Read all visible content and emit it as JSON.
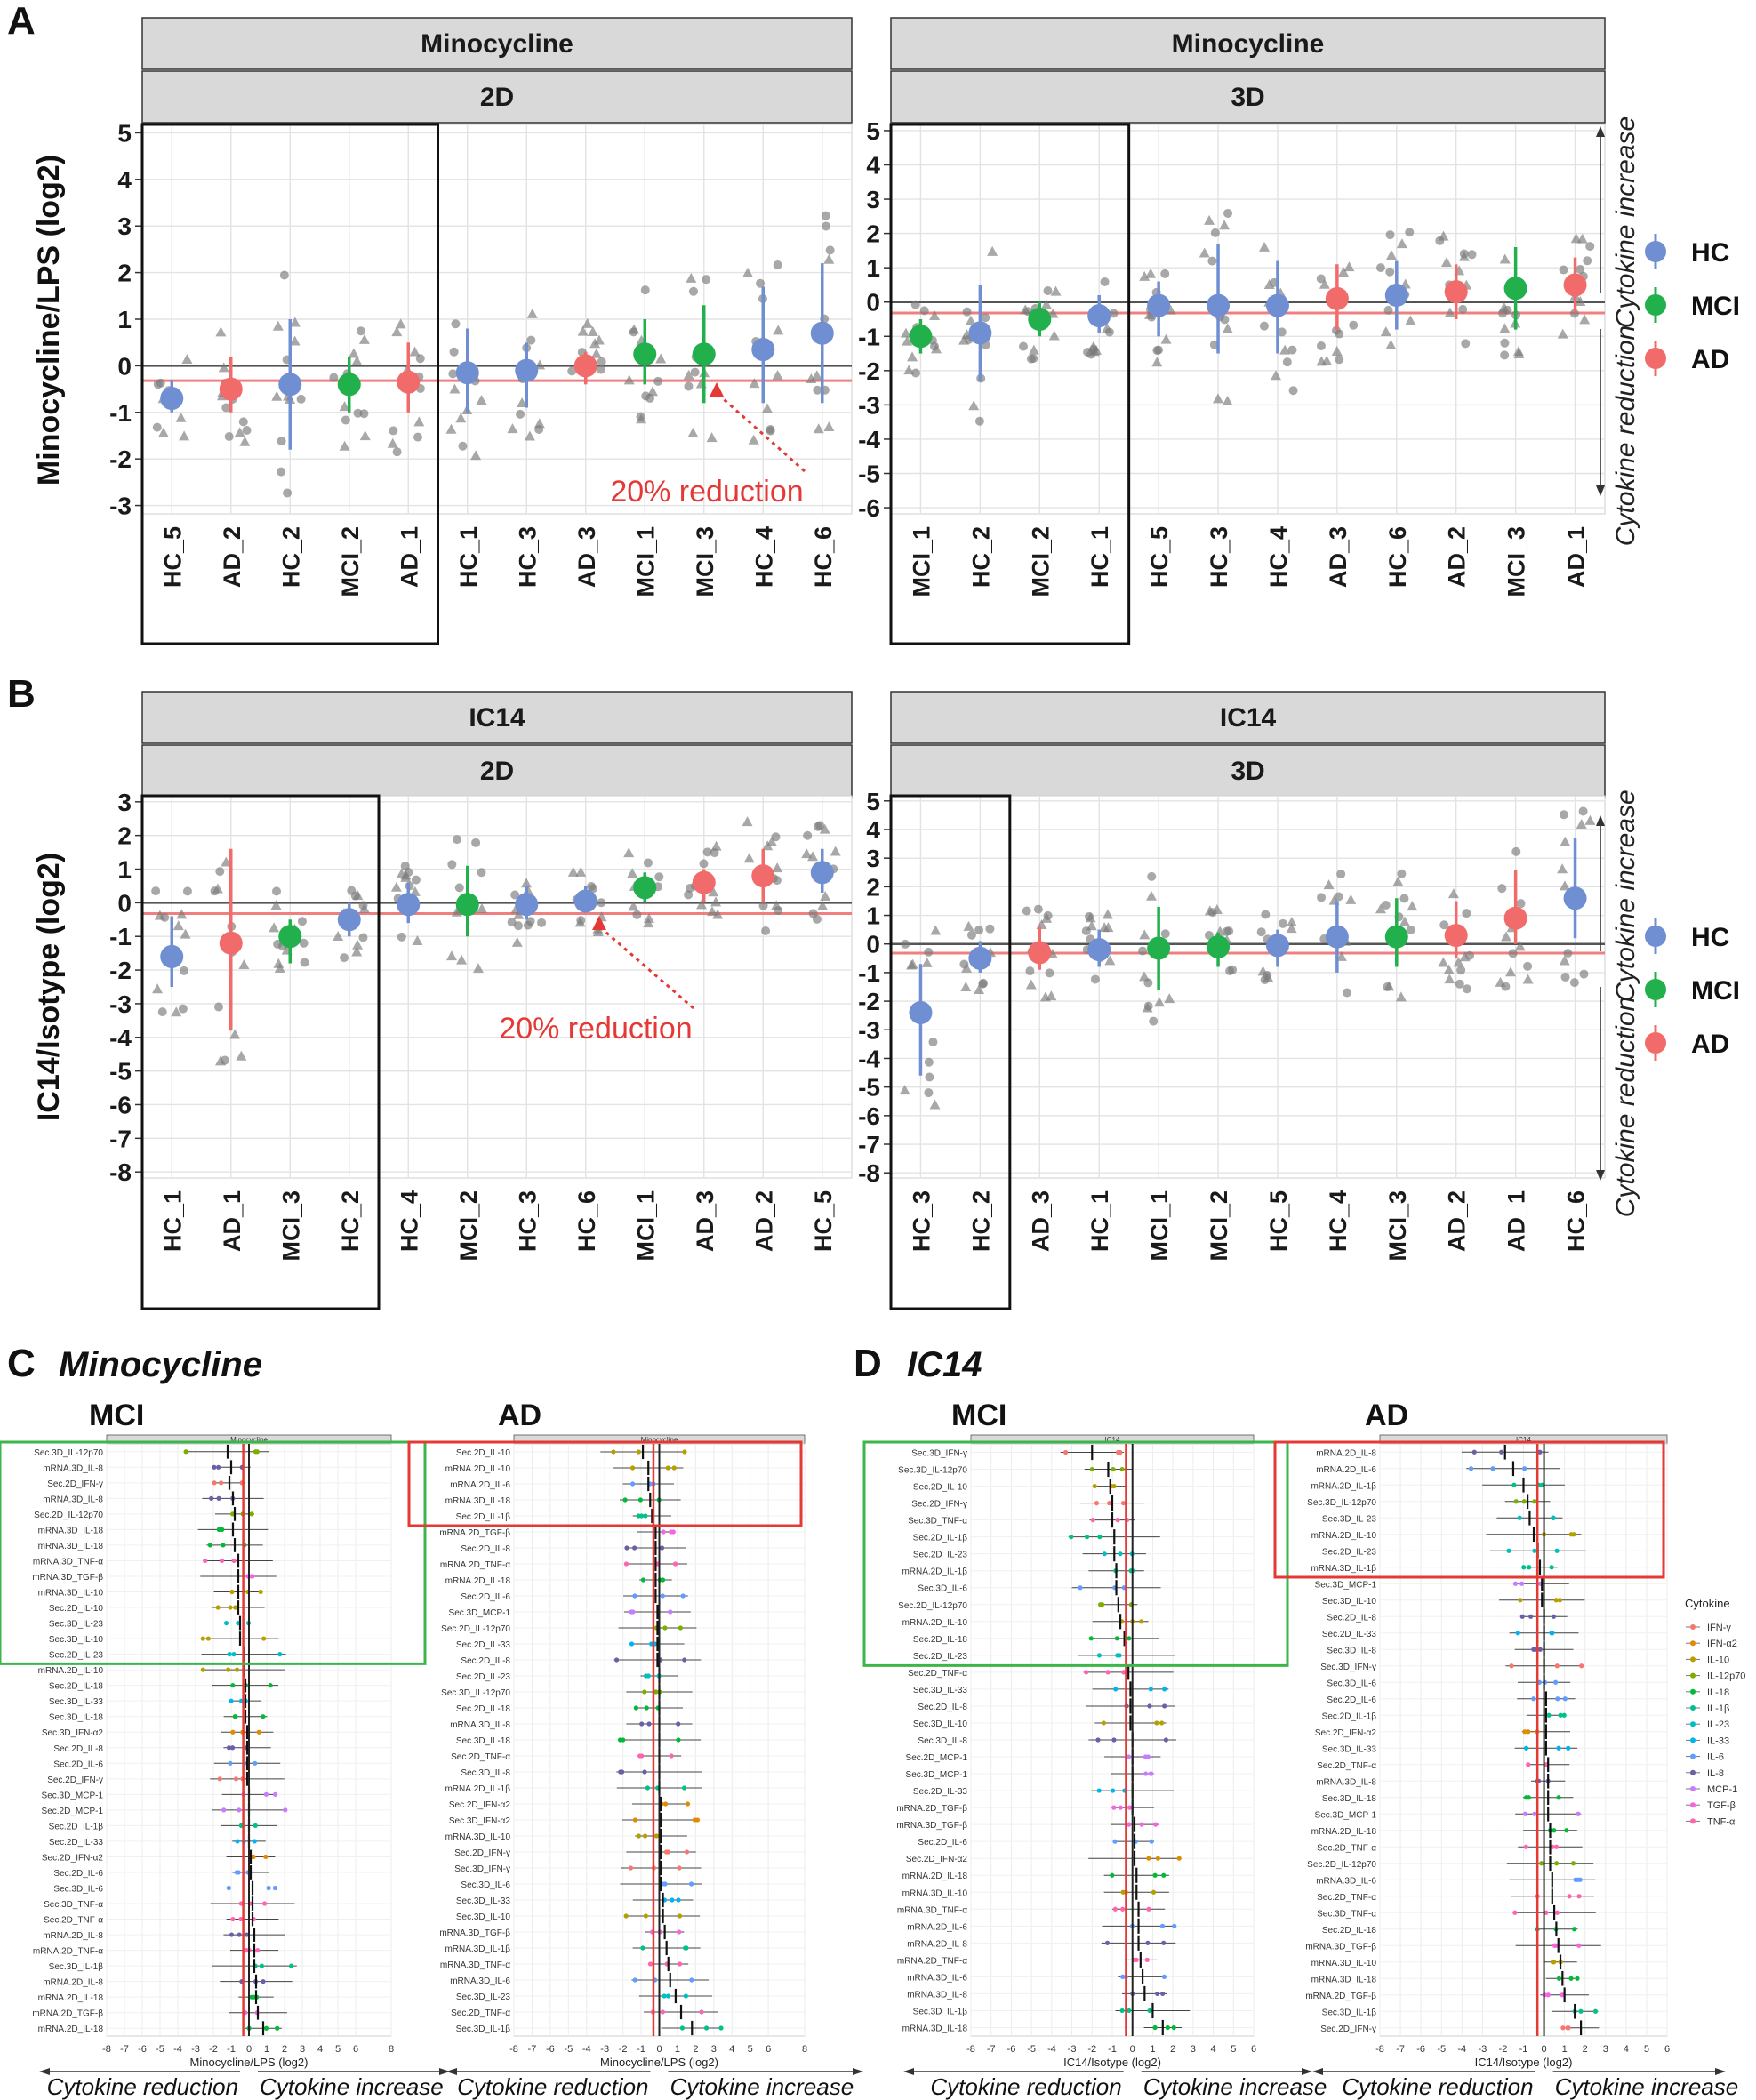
{
  "figure": {
    "panel_letters": [
      "A",
      "B",
      "C",
      "D"
    ],
    "panel_C_title": "Minocycline",
    "panel_D_title": "IC14",
    "legend_groups": [
      {
        "name": "HC",
        "color": "#6f8fd2"
      },
      {
        "name": "MCI",
        "color": "#21b04b"
      },
      {
        "name": "AD",
        "color": "#f26b6b"
      }
    ],
    "cytokine_legend_title": "Cytokine",
    "cytokine_legend": [
      {
        "name": "IFN-γ",
        "color": "#f8766d"
      },
      {
        "name": "IFN-α2",
        "color": "#e08b00"
      },
      {
        "name": "IL-10",
        "color": "#b79f00"
      },
      {
        "name": "IL-12p70",
        "color": "#7cae00"
      },
      {
        "name": "IL-18",
        "color": "#00ba38"
      },
      {
        "name": "IL-1β",
        "color": "#00c08b"
      },
      {
        "name": "IL-23",
        "color": "#00bfc4"
      },
      {
        "name": "IL-33",
        "color": "#00b4f0"
      },
      {
        "name": "IL-6",
        "color": "#619cff"
      },
      {
        "name": "IL-8",
        "color": "#6b5fa8"
      },
      {
        "name": "MCP-1",
        "color": "#c77cff"
      },
      {
        "name": "TGF-β",
        "color": "#f564e3"
      },
      {
        "name": "TNF-α",
        "color": "#ff64b0"
      }
    ],
    "side_label_increase": "Cytokine increase",
    "side_label_reduction": "Cytokine reduction",
    "reduction_annotation": "20% reduction"
  },
  "chart_data": [
    {
      "type": "scatter",
      "panel": "A",
      "ylabel": "Minocycline/LPS (log2)",
      "facets": [
        {
          "strip_top": "Minocycline",
          "strip_bottom": "2D",
          "ylim": [
            -3,
            5
          ],
          "reference_line": -0.32,
          "categories": [
            "HC_5",
            "AD_2",
            "HC_2",
            "MCI_2",
            "AD_1",
            "HC_1",
            "HC_3",
            "AD_3",
            "MCI_1",
            "MCI_3",
            "HC_4",
            "HC_6"
          ],
          "means": [
            -0.7,
            -0.5,
            -0.4,
            -0.4,
            -0.35,
            -0.15,
            -0.1,
            0.0,
            0.25,
            0.25,
            0.35,
            0.7
          ],
          "ci_low": [
            -1.0,
            -1.0,
            -1.8,
            -1.0,
            -1.0,
            -1.0,
            -0.9,
            -0.4,
            -0.4,
            -0.8,
            -0.8,
            -0.8
          ],
          "ci_high": [
            -0.3,
            0.2,
            1.0,
            0.2,
            0.5,
            0.8,
            0.5,
            0.3,
            1.0,
            1.3,
            1.7,
            2.2
          ],
          "groups": [
            "HC",
            "AD",
            "HC",
            "MCI",
            "AD",
            "HC",
            "HC",
            "AD",
            "MCI",
            "MCI",
            "HC",
            "HC"
          ],
          "boxed_count": 5
        },
        {
          "strip_top": "Minocycline",
          "strip_bottom": "3D",
          "ylim": [
            -6,
            5
          ],
          "reference_line": -0.32,
          "categories": [
            "MCI_1",
            "HC_2",
            "MCI_2",
            "HC_1",
            "HC_5",
            "HC_3",
            "HC_4",
            "AD_3",
            "HC_6",
            "AD_2",
            "MCI_3",
            "AD_1"
          ],
          "means": [
            -1.0,
            -0.9,
            -0.5,
            -0.4,
            -0.1,
            -0.1,
            -0.1,
            0.1,
            0.2,
            0.3,
            0.4,
            0.5
          ],
          "ci_low": [
            -1.5,
            -2.3,
            -1.0,
            -0.9,
            -1.0,
            -1.5,
            -1.5,
            -0.8,
            -0.8,
            -0.5,
            -0.8,
            -0.3
          ],
          "ci_high": [
            -0.5,
            0.5,
            0.0,
            0.2,
            0.6,
            1.7,
            1.2,
            1.1,
            1.2,
            1.1,
            1.6,
            1.3
          ],
          "groups": [
            "MCI",
            "HC",
            "MCI",
            "HC",
            "HC",
            "HC",
            "HC",
            "AD",
            "HC",
            "AD",
            "MCI",
            "AD"
          ],
          "boxed_count": 4
        }
      ]
    },
    {
      "type": "scatter",
      "panel": "B",
      "ylabel": "IC14/Isotype (log2)",
      "facets": [
        {
          "strip_top": "IC14",
          "strip_bottom": "2D",
          "ylim": [
            -8,
            3
          ],
          "reference_line": -0.32,
          "categories": [
            "HC_1",
            "AD_1",
            "MCI_3",
            "HC_2",
            "HC_4",
            "MCI_2",
            "HC_3",
            "HC_6",
            "MCI_1",
            "AD_3",
            "AD_2",
            "HC_5"
          ],
          "means": [
            -1.6,
            -1.2,
            -1.0,
            -0.5,
            -0.05,
            -0.05,
            -0.05,
            0.05,
            0.45,
            0.6,
            0.8,
            0.9
          ],
          "ci_low": [
            -2.5,
            -3.8,
            -1.8,
            -1.0,
            -0.6,
            -1.0,
            -0.5,
            -0.3,
            0.0,
            0.0,
            0.0,
            0.3
          ],
          "ci_high": [
            -0.4,
            1.6,
            -0.5,
            0.0,
            0.6,
            1.1,
            0.5,
            0.5,
            0.9,
            1.0,
            1.6,
            1.6
          ],
          "groups": [
            "HC",
            "AD",
            "MCI",
            "HC",
            "HC",
            "MCI",
            "HC",
            "HC",
            "MCI",
            "AD",
            "AD",
            "HC"
          ],
          "boxed_count": 4
        },
        {
          "strip_top": "IC14",
          "strip_bottom": "3D",
          "ylim": [
            -8,
            5
          ],
          "reference_line": -0.32,
          "categories": [
            "HC_3",
            "HC_2",
            "AD_3",
            "HC_1",
            "MCI_1",
            "MCI_2",
            "HC_5",
            "HC_4",
            "MCI_3",
            "AD_2",
            "AD_1",
            "HC_6"
          ],
          "means": [
            -2.4,
            -0.5,
            -0.3,
            -0.2,
            -0.15,
            -0.1,
            -0.05,
            0.25,
            0.25,
            0.3,
            0.9,
            1.6
          ],
          "ci_low": [
            -4.6,
            -1.0,
            -0.9,
            -0.8,
            -1.6,
            -0.8,
            -0.8,
            -1.0,
            -0.8,
            -0.5,
            0.0,
            0.2
          ],
          "ci_high": [
            -0.7,
            0.1,
            0.6,
            0.5,
            1.3,
            0.4,
            0.5,
            1.5,
            1.6,
            1.5,
            2.6,
            3.7
          ],
          "groups": [
            "HC",
            "HC",
            "AD",
            "HC",
            "MCI",
            "MCI",
            "HC",
            "HC",
            "MCI",
            "AD",
            "AD",
            "HC"
          ],
          "boxed_count": 2
        }
      ]
    },
    {
      "type": "forest",
      "panel": "C",
      "xlabel": "Minocycline/LPS (log2)",
      "xlim": [
        -8,
        8
      ],
      "xticks": [
        -8,
        -7,
        -6,
        -5,
        -4,
        -3,
        -2,
        -1,
        0,
        1,
        2,
        3,
        4,
        5,
        6,
        8
      ],
      "facets": [
        {
          "group": "MCI",
          "strip": "Minocycline",
          "boxed_count": 14,
          "rows": [
            "Sec.3D_IL-12p70",
            "mRNA.3D_IL-8",
            "Sec.2D_IFN-γ",
            "mRNA.3D_IL-8",
            "Sec.2D_IL-12p70",
            "mRNA.3D_IL-18",
            "mRNA.3D_IL-18",
            "mRNA.3D_TNF-α",
            "mRNA.3D_TGF-β",
            "mRNA.3D_IL-10",
            "Sec.2D_IL-10",
            "Sec.3D_IL-23",
            "Sec.3D_IL-10",
            "Sec.2D_IL-23",
            "mRNA.2D_IL-10",
            "Sec.2D_IL-18",
            "Sec.3D_IL-33",
            "Sec.3D_IL-18",
            "Sec.3D_IFN-α2",
            "Sec.2D_IL-8",
            "Sec.2D_IL-6",
            "Sec.2D_IFN-γ",
            "Sec.3D_MCP-1",
            "Sec.2D_MCP-1",
            "Sec.2D_IL-1β",
            "Sec.2D_IL-33",
            "Sec.2D_IFN-α2",
            "Sec.2D_IL-6",
            "Sec.3D_IL-6",
            "Sec.3D_TNF-α",
            "Sec.2D_TNF-α",
            "mRNA.2D_IL-8",
            "mRNA.2D_TNF-α",
            "Sec.3D_IL-1β",
            "mRNA.2D_IL-8",
            "mRNA.2D_IL-18",
            "mRNA.2D_TGF-β",
            "mRNA.2D_IL-18"
          ],
          "means": [
            -1.2,
            -1.0,
            -1.1,
            -0.9,
            -0.8,
            -0.9,
            -0.8,
            -0.6,
            -0.6,
            -0.6,
            -0.6,
            -0.5,
            -0.5,
            -0.3,
            -0.3,
            -0.2,
            -0.2,
            -0.2,
            -0.1,
            -0.1,
            -0.1,
            -0.1,
            0.0,
            0.0,
            0.0,
            0.0,
            0.1,
            0.1,
            0.2,
            0.2,
            0.2,
            0.3,
            0.3,
            0.3,
            0.4,
            0.4,
            0.5,
            0.8
          ]
        },
        {
          "group": "AD",
          "strip": "Minocycline",
          "boxed_count": 5,
          "rows": [
            "Sec.2D_IL-10",
            "mRNA.2D_IL-10",
            "mRNA.2D_IL-6",
            "mRNA.3D_IL-18",
            "Sec.2D_IL-1β",
            "mRNA.2D_TGF-β",
            "Sec.2D_IL-8",
            "mRNA.2D_TNF-α",
            "mRNA.2D_IL-18",
            "Sec.2D_IL-6",
            "Sec.3D_MCP-1",
            "Sec.2D_IL-12p70",
            "Sec.2D_IL-33",
            "Sec.2D_IL-8",
            "Sec.2D_IL-23",
            "Sec.3D_IL-12p70",
            "Sec.2D_IL-18",
            "mRNA.3D_IL-8",
            "Sec.3D_IL-18",
            "Sec.2D_TNF-α",
            "Sec.3D_IL-8",
            "mRNA.2D_IL-1β",
            "Sec.2D_IFN-α2",
            "Sec.3D_IFN-α2",
            "mRNA.3D_IL-10",
            "Sec.2D_IFN-γ",
            "Sec.3D_IFN-γ",
            "Sec.3D_IL-6",
            "Sec.3D_IL-33",
            "Sec.3D_IL-10",
            "mRNA.3D_TGF-β",
            "mRNA.3D_IL-1β",
            "mRNA.3D_TNF-α",
            "mRNA.3D_IL-6",
            "Sec.3D_IL-23",
            "Sec.2D_TNF-α",
            "Sec.3D_IL-1β"
          ],
          "means": [
            -0.9,
            -0.6,
            -0.6,
            -0.5,
            -0.4,
            -0.2,
            -0.2,
            -0.2,
            -0.2,
            -0.2,
            -0.1,
            -0.1,
            -0.1,
            -0.1,
            0.0,
            0.0,
            0.0,
            0.0,
            0.0,
            0.0,
            0.0,
            0.0,
            0.1,
            0.1,
            0.1,
            0.1,
            0.1,
            0.1,
            0.2,
            0.2,
            0.3,
            0.4,
            0.5,
            0.6,
            0.9,
            1.2,
            1.8
          ]
        }
      ]
    },
    {
      "type": "forest",
      "panel": "D",
      "xlabel": "IC14/Isotype (log2)",
      "xlim": [
        -8,
        6
      ],
      "xticks": [
        -8,
        -7,
        -6,
        -5,
        -4,
        -3,
        -2,
        -1,
        0,
        1,
        2,
        3,
        4,
        5,
        6
      ],
      "facets": [
        {
          "group": "MCI",
          "strip": "IC14",
          "boxed_count": 13,
          "rows": [
            "Sec.3D_IFN-γ",
            "Sec.3D_IL-12p70",
            "Sec.2D_IL-10",
            "Sec.2D_IFN-γ",
            "Sec.3D_TNF-α",
            "Sec.2D_IL-1β",
            "Sec.2D_IL-23",
            "mRNA.2D_IL-1β",
            "Sec.3D_IL-6",
            "Sec.2D_IL-12p70",
            "mRNA.2D_IL-10",
            "Sec.2D_IL-18",
            "Sec.2D_IL-23",
            "Sec.2D_TNF-α",
            "Sec.3D_IL-33",
            "Sec.2D_IL-8",
            "Sec.3D_IL-10",
            "Sec.3D_IL-8",
            "Sec.2D_MCP-1",
            "Sec.3D_MCP-1",
            "Sec.2D_IL-33",
            "mRNA.2D_TGF-β",
            "mRNA.3D_TGF-β",
            "Sec.2D_IL-6",
            "Sec.2D_IFN-α2",
            "mRNA.2D_IL-18",
            "mRNA.3D_IL-10",
            "mRNA.3D_TNF-α",
            "mRNA.2D_IL-6",
            "mRNA.2D_IL-8",
            "mRNA.2D_TNF-α",
            "mRNA.3D_IL-6",
            "mRNA.3D_IL-8",
            "Sec.3D_IL-1β",
            "mRNA.3D_IL-18"
          ],
          "means": [
            -2.0,
            -1.2,
            -1.1,
            -1.0,
            -1.0,
            -0.9,
            -0.9,
            -0.8,
            -0.8,
            -0.7,
            -0.6,
            -0.4,
            -0.3,
            -0.2,
            -0.1,
            -0.1,
            -0.1,
            0.0,
            0.0,
            0.0,
            0.0,
            0.0,
            0.1,
            0.1,
            0.1,
            0.2,
            0.2,
            0.3,
            0.3,
            0.3,
            0.4,
            0.5,
            0.6,
            1.0,
            1.5
          ]
        },
        {
          "group": "AD",
          "strip": "IC14",
          "boxed_count": 8,
          "rows": [
            "mRNA.2D_IL-8",
            "mRNA.2D_IL-6",
            "mRNA.2D_IL-1β",
            "Sec.3D_IL-12p70",
            "Sec.3D_IL-23",
            "mRNA.2D_IL-10",
            "Sec.2D_IL-23",
            "mRNA.3D_IL-1β",
            "Sec.3D_MCP-1",
            "Sec.3D_IL-10",
            "Sec.2D_IL-8",
            "Sec.2D_IL-33",
            "Sec.3D_IL-8",
            "Sec.3D_IFN-γ",
            "Sec.3D_IL-6",
            "Sec.2D_IL-6",
            "Sec.2D_IL-1β",
            "Sec.2D_IFN-α2",
            "Sec.3D_IL-33",
            "Sec.2D_TNF-α",
            "mRNA.3D_IL-8",
            "Sec.3D_IL-18",
            "Sec.3D_MCP-1",
            "mRNA.2D_IL-18",
            "Sec.2D_TNF-α",
            "Sec.2D_IL-12p70",
            "mRNA.3D_IL-6",
            "Sec.2D_TNF-α",
            "Sec.3D_TNF-α",
            "Sec.2D_IL-18",
            "mRNA.3D_TGF-β",
            "mRNA.3D_IL-10",
            "mRNA.3D_IL-18",
            "mRNA.2D_TGF-β",
            "Sec.3D_IL-1β",
            "Sec.2D_IFN-γ"
          ],
          "means": [
            -1.9,
            -1.5,
            -1.0,
            -0.8,
            -0.7,
            -0.5,
            -0.3,
            -0.2,
            -0.1,
            -0.1,
            0.0,
            0.0,
            0.0,
            0.0,
            0.0,
            0.1,
            0.1,
            0.1,
            0.1,
            0.2,
            0.2,
            0.2,
            0.2,
            0.3,
            0.3,
            0.3,
            0.4,
            0.4,
            0.5,
            0.6,
            0.7,
            0.8,
            0.9,
            1.0,
            1.5,
            1.8
          ]
        }
      ]
    }
  ]
}
